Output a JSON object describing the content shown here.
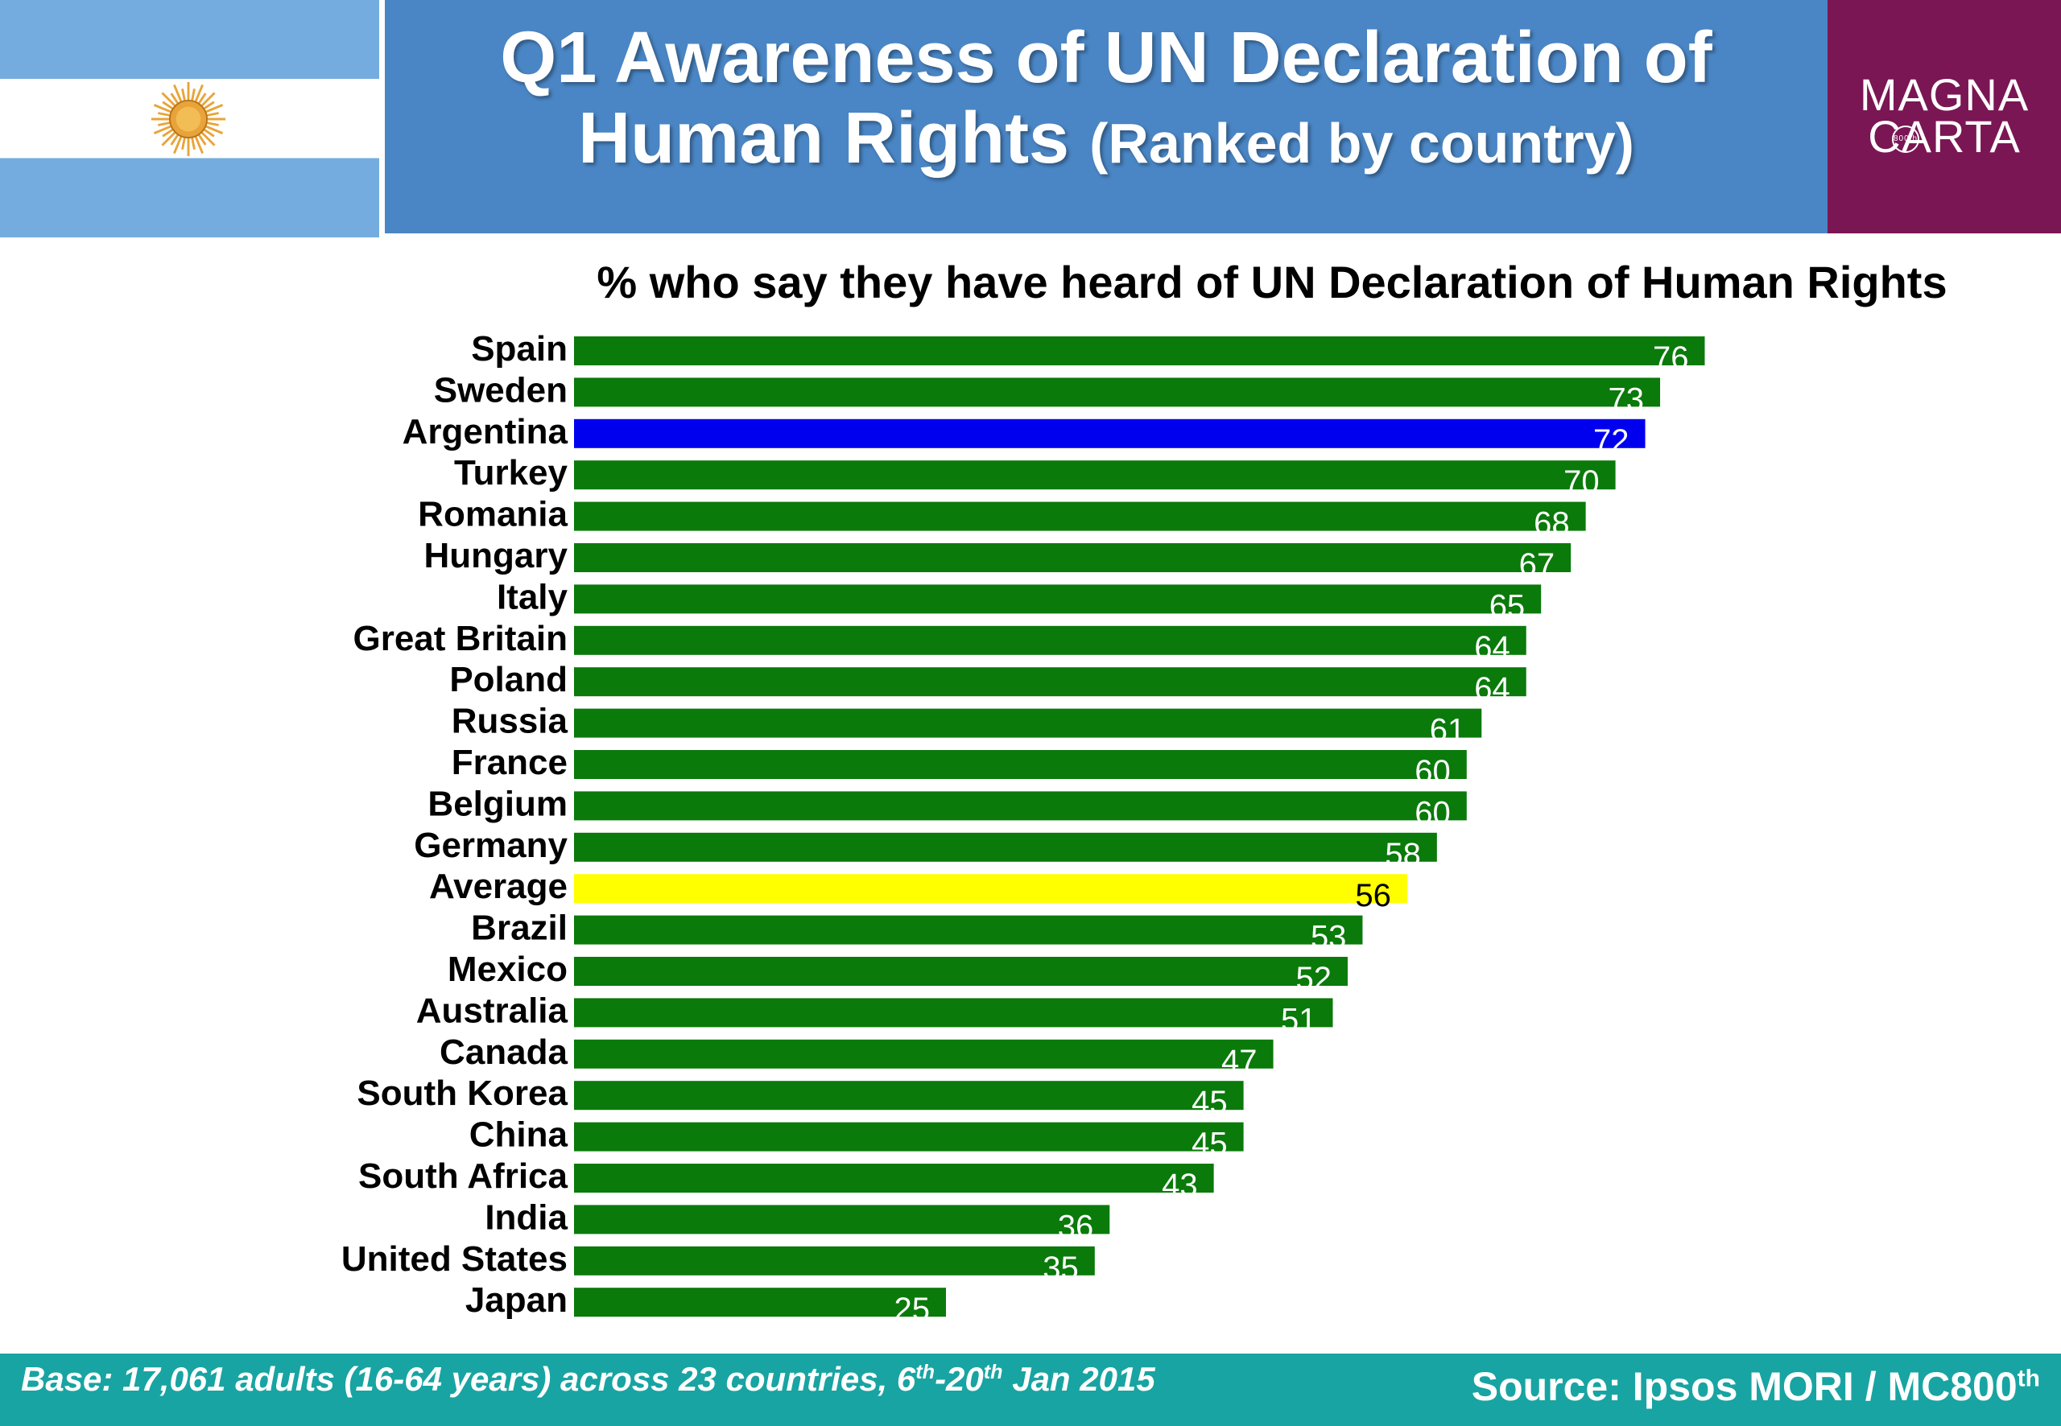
{
  "header": {
    "title_line1": "Q1 Awareness of UN Declaration of",
    "title_line2": "Human Rights",
    "title_suffix": "(Ranked by country)",
    "logo_line1": "MAGNA",
    "logo_line2": "CARTA",
    "logo_seal": "800th",
    "colors": {
      "title_band": "#4a86c5",
      "logo_band": "#7a1654",
      "flag_blue": "#74acdf",
      "sun": "#e8a43a"
    }
  },
  "subtitle": "% who say they have heard of UN Declaration of Human Rights",
  "chart_data": {
    "type": "bar",
    "orientation": "horizontal",
    "title": "% who say they have heard of UN Declaration of Human Rights",
    "categories": [
      "Spain",
      "Sweden",
      "Argentina",
      "Turkey",
      "Romania",
      "Hungary",
      "Italy",
      "Great Britain",
      "Poland",
      "Russia",
      "France",
      "Belgium",
      "Germany",
      "Average",
      "Brazil",
      "Mexico",
      "Australia",
      "Canada",
      "South Korea",
      "China",
      "South Africa",
      "India",
      "United States",
      "Japan"
    ],
    "values": [
      76,
      73,
      72,
      70,
      68,
      67,
      65,
      64,
      64,
      61,
      60,
      60,
      58,
      56,
      53,
      52,
      51,
      47,
      45,
      45,
      43,
      36,
      35,
      25
    ],
    "highlight": {
      "Argentina": "#0000ee",
      "Average": "#ffff00"
    },
    "bar_color": "#0a7a0a",
    "value_label_color": "#ffffff",
    "average_label_color": "#000000",
    "xlim": [
      0,
      100
    ],
    "grid": false,
    "legend": "none"
  },
  "footer": {
    "base_prefix": "Base: 17,061 adults (16-64 years) across 23 countries, 6",
    "base_sup1": "th",
    "base_mid": "-20",
    "base_sup2": "th",
    "base_suffix": " Jan 2015",
    "source_text": "Source: Ipsos MORI / MC800",
    "source_sup": "th",
    "color": "#18a4a2"
  }
}
